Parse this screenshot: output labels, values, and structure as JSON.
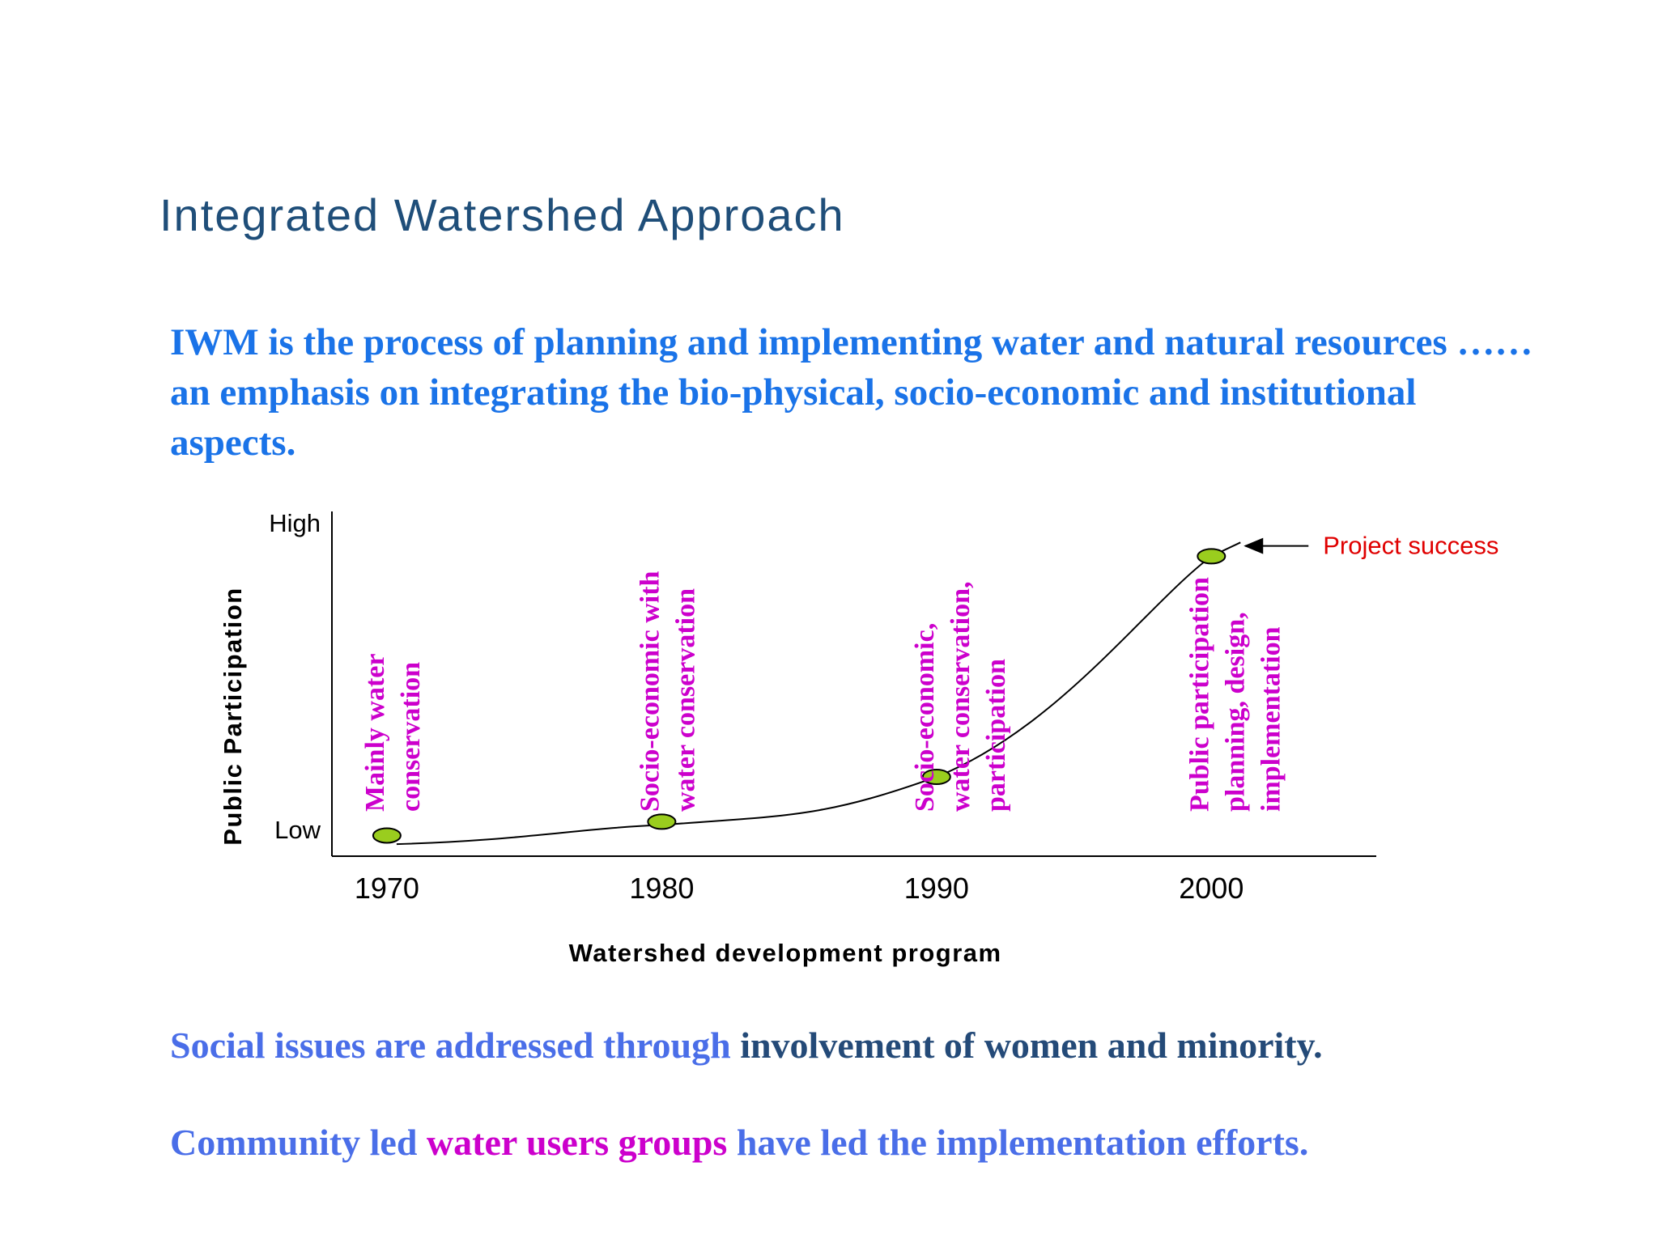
{
  "slide": {
    "title": "Integrated Watershed Approach",
    "intro": "IWM is the process of planning and implementing water and natural resources …… an emphasis on integrating the bio-physical, socio-economic and institutional aspects."
  },
  "colors": {
    "title": "#1f4e79",
    "intro": "#1a73e8",
    "light_blue": "#4a6ee8",
    "dark_navy": "#244a78",
    "magenta": "#cc00cc",
    "red": "#e00000",
    "marker_fill": "#9acd1e"
  },
  "chart_data": {
    "type": "line",
    "title": "",
    "xlabel": "Watershed development program",
    "ylabel": "Public Participation",
    "y_high_label": "High",
    "y_low_label": "Low",
    "x": [
      1970,
      1980,
      1990,
      2000
    ],
    "x_tick_labels": [
      "1970",
      "1980",
      "1990",
      "2000"
    ],
    "xlim": [
      1968,
      2006
    ],
    "ylim": [
      0,
      1
    ],
    "points": [
      {
        "x": 1970,
        "y": 0.06
      },
      {
        "x": 1980,
        "y": 0.1
      },
      {
        "x": 1990,
        "y": 0.23
      },
      {
        "x": 2000,
        "y": 0.87
      }
    ],
    "stage_labels": [
      {
        "x": 1970,
        "lines": [
          "Mainly water",
          "conservation"
        ]
      },
      {
        "x": 1980,
        "lines": [
          "Socio-economic with",
          "water conservation"
        ]
      },
      {
        "x": 1990,
        "lines": [
          "Socio-economic,",
          "water conservation,",
          "participation"
        ]
      },
      {
        "x": 2000,
        "lines": [
          "Public participation",
          "planning, design,",
          "implementation"
        ]
      }
    ],
    "annotation": {
      "text": "Project success",
      "x": 2001,
      "y": 0.9
    },
    "grid": false,
    "legend": "none"
  },
  "bullets": [
    {
      "segments": [
        {
          "text": "Social issues are addressed through ",
          "color": "#4a6ee8"
        },
        {
          "text": "involvement of women and minority.",
          "color": "#244a78"
        }
      ]
    },
    {
      "segments": [
        {
          "text": "Community led ",
          "color": "#4a6ee8"
        },
        {
          "text": "water users groups",
          "color": "#cc00cc"
        },
        {
          "text": " have led the implementation efforts.",
          "color": "#4a6ee8"
        }
      ]
    }
  ]
}
